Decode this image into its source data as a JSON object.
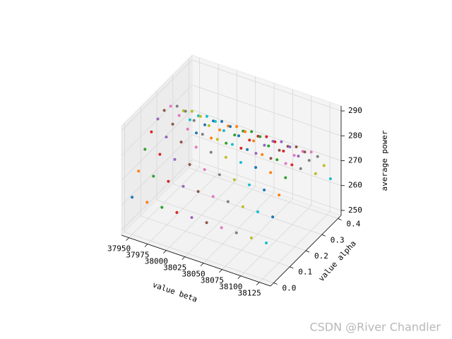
{
  "chart_data": {
    "type": "scatter3d",
    "xlabel": "value beta",
    "ylabel": "value alpha",
    "zlabel": "average power",
    "xlim": [
      37940,
      38140
    ],
    "ylim": [
      -0.02,
      0.42
    ],
    "zlim": [
      248,
      292
    ],
    "xticks": [
      37950,
      37975,
      38000,
      38025,
      38050,
      38075,
      38100,
      38125
    ],
    "yticks": [
      {
        "value": 0,
        "label": "0.0"
      },
      0.1,
      0.2,
      0.3,
      0.4
    ],
    "zticks": [
      250,
      260,
      270,
      280,
      290
    ],
    "grid": true,
    "colors": [
      "#1f77b4",
      "#ff7f0e",
      "#2ca02c",
      "#d62728",
      "#9467bd",
      "#8c564b",
      "#e377c2",
      "#7f7f7f",
      "#bcbd22",
      "#17becf"
    ],
    "y": [
      0,
      0.04,
      0.08,
      0.12,
      0.16,
      0.2,
      0.24,
      0.28,
      0.32,
      0.36,
      0.4
    ],
    "series": [
      {
        "x": 37950,
        "values": [
          263,
          270.9,
          277.1,
          281.5,
          284.1,
          285,
          284.1,
          281.5,
          277.1,
          270.9,
          263
        ]
      },
      {
        "x": 37970,
        "values": [
          263,
          270.9,
          277.1,
          281.5,
          284.1,
          285,
          284.1,
          281.5,
          277.1,
          270.9,
          263
        ]
      },
      {
        "x": 37990,
        "values": [
          263,
          270.9,
          277.1,
          281.5,
          284.1,
          285,
          284.1,
          281.5,
          277.1,
          270.9,
          263
        ]
      },
      {
        "x": 38010,
        "values": [
          263,
          270.9,
          277.1,
          281.5,
          284.1,
          285,
          284.1,
          281.5,
          277.1,
          270.9,
          263
        ]
      },
      {
        "x": 38030,
        "values": [
          263,
          270.9,
          277.1,
          281.5,
          284.1,
          285,
          284.1,
          281.5,
          277.1,
          270.9,
          263
        ]
      },
      {
        "x": 38050,
        "values": [
          263,
          270.9,
          277.1,
          281.5,
          284.1,
          285,
          284.1,
          281.5,
          277.1,
          270.9,
          263
        ]
      },
      {
        "x": 38070,
        "values": [
          263,
          270.9,
          277.1,
          281.5,
          284.1,
          285,
          284.1,
          281.5,
          277.1,
          270.9,
          263
        ]
      },
      {
        "x": 38090,
        "values": [
          263,
          270.9,
          277.1,
          281.5,
          284.1,
          285,
          284.1,
          281.5,
          277.1,
          270.9,
          263
        ]
      },
      {
        "x": 38110,
        "values": [
          263,
          270.9,
          277.1,
          281.5,
          284.1,
          285,
          284.1,
          281.5,
          277.1,
          270.9,
          263
        ]
      },
      {
        "x": 38130,
        "values": [
          263,
          270.9,
          277.1,
          281.5,
          284.1,
          285,
          284.1,
          281.5,
          277.1,
          270.9,
          263
        ]
      }
    ],
    "watermark": "CSDN @River Chandler"
  }
}
